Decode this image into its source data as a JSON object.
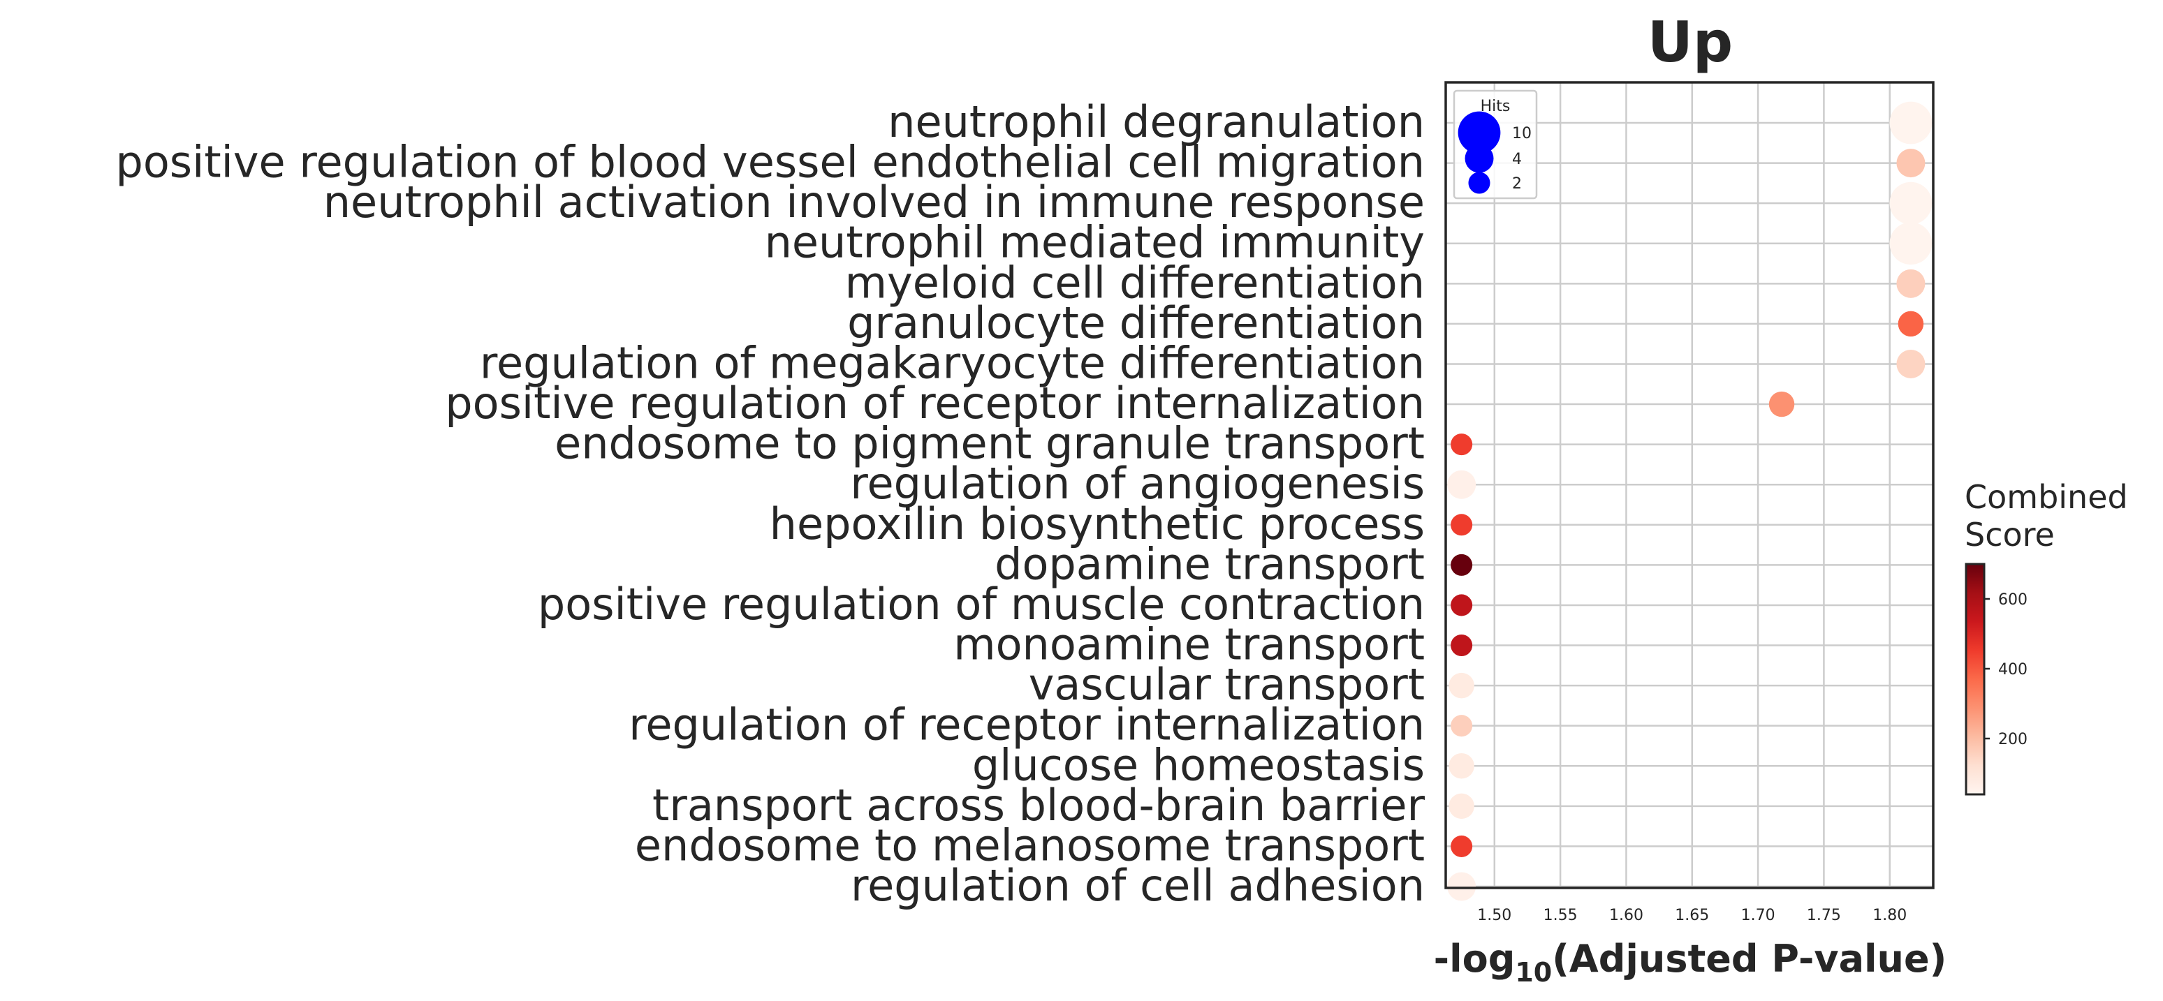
{
  "chart_data": {
    "type": "scatter",
    "title": "Up",
    "xlabel_prefix": "-log",
    "xlabel_sub": "10",
    "xlabel_suffix": "(Adjusted P-value)",
    "xlim": [
      1.463,
      1.833
    ],
    "xticks": [
      1.5,
      1.55,
      1.6,
      1.65,
      1.7,
      1.75,
      1.8
    ],
    "xtick_labels": [
      "1.50",
      "1.55",
      "1.60",
      "1.65",
      "1.70",
      "1.75",
      "1.80"
    ],
    "grid": true,
    "size_legend": {
      "title": "Hits",
      "placement": "top-left",
      "entries": [
        {
          "label": "10",
          "value": 10
        },
        {
          "label": "4",
          "value": 4
        },
        {
          "label": "2",
          "value": 2
        }
      ],
      "color": "#0000ff"
    },
    "colorbar": {
      "title_lines": [
        "Combined",
        "Score"
      ],
      "min": 40,
      "max": 700,
      "ticks": [
        200,
        400,
        600
      ],
      "tick_labels": [
        "200",
        "400",
        "600"
      ],
      "colormap": "Reds"
    },
    "terms": [
      {
        "label": "neutrophil degranulation",
        "x": 1.816,
        "hits": 10,
        "score": 45
      },
      {
        "label": "positive regulation of blood vessel endothelial cell migration",
        "x": 1.816,
        "hits": 4,
        "score": 180
      },
      {
        "label": "neutrophil activation involved in immune response",
        "x": 1.816,
        "hits": 10,
        "score": 45
      },
      {
        "label": "neutrophil mediated immunity",
        "x": 1.816,
        "hits": 10,
        "score": 45
      },
      {
        "label": "myeloid cell differentiation",
        "x": 1.816,
        "hits": 4,
        "score": 160
      },
      {
        "label": "granulocyte differentiation",
        "x": 1.816,
        "hits": 3,
        "score": 380
      },
      {
        "label": "regulation of megakaryocyte differentiation",
        "x": 1.816,
        "hits": 4,
        "score": 150
      },
      {
        "label": "positive regulation of receptor internalization",
        "x": 1.718,
        "hits": 3,
        "score": 290
      },
      {
        "label": "endosome to pigment granule transport",
        "x": 1.475,
        "hits": 2,
        "score": 450
      },
      {
        "label": "regulation of angiogenesis",
        "x": 1.475,
        "hits": 4,
        "score": 60
      },
      {
        "label": "hepoxilin biosynthetic process",
        "x": 1.475,
        "hits": 2,
        "score": 450
      },
      {
        "label": "dopamine transport",
        "x": 1.475,
        "hits": 2,
        "score": 700
      },
      {
        "label": "positive regulation of muscle contraction",
        "x": 1.475,
        "hits": 2,
        "score": 560
      },
      {
        "label": "monoamine transport",
        "x": 1.475,
        "hits": 2,
        "score": 560
      },
      {
        "label": "vascular transport",
        "x": 1.475,
        "hits": 3,
        "score": 80
      },
      {
        "label": "regulation of receptor internalization",
        "x": 1.475,
        "hits": 2,
        "score": 160
      },
      {
        "label": "glucose homeostasis",
        "x": 1.475,
        "hits": 3,
        "score": 80
      },
      {
        "label": "transport across blood-brain barrier",
        "x": 1.475,
        "hits": 3,
        "score": 80
      },
      {
        "label": "endosome to melanosome transport",
        "x": 1.475,
        "hits": 2,
        "score": 450
      },
      {
        "label": "regulation of cell adhesion",
        "x": 1.475,
        "hits": 4,
        "score": 60
      }
    ]
  }
}
